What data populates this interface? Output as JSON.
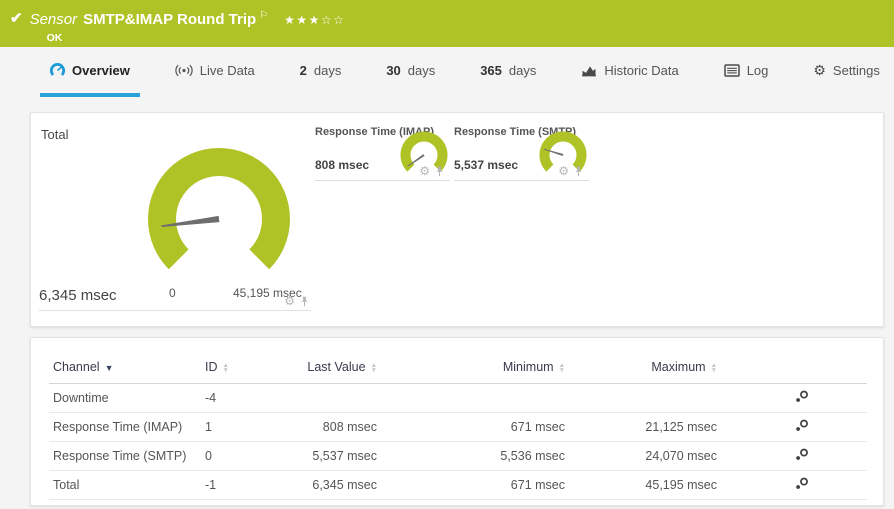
{
  "header": {
    "check_icon": "✔",
    "kind": "Sensor",
    "title": "SMTP&IMAP Round Trip",
    "flag_icon": "⚐",
    "stars": "★★★☆☆",
    "status": "OK"
  },
  "tabs": [
    {
      "label": "Overview",
      "active": true
    },
    {
      "label": "Live Data"
    },
    {
      "num": "2",
      "label": "days"
    },
    {
      "num": "30",
      "label": "days"
    },
    {
      "num": "365",
      "label": "days"
    },
    {
      "label": "Historic Data"
    },
    {
      "label": "Log"
    },
    {
      "label": "Settings"
    }
  ],
  "gauges": {
    "total": {
      "title": "Total",
      "value": 6345,
      "min": 0,
      "max": 45195,
      "value_label": "6,345 msec",
      "min_label": "0",
      "max_label": "45,195 msec"
    },
    "imap": {
      "title": "Response Time (IMAP)",
      "value": 808,
      "max": 21125,
      "value_label": "808 msec"
    },
    "smtp": {
      "title": "Response Time (SMTP)",
      "value": 5537,
      "max": 24070,
      "value_label": "5,537 msec"
    }
  },
  "table": {
    "columns": {
      "channel": "Channel",
      "id": "ID",
      "last": "Last Value",
      "min": "Minimum",
      "max": "Maximum"
    },
    "rows": [
      {
        "channel": "Downtime",
        "id": "-4",
        "last": "",
        "min": "",
        "max": ""
      },
      {
        "channel": "Response Time (IMAP)",
        "id": "1",
        "last": "808 msec",
        "min": "671 msec",
        "max": "21,125 msec"
      },
      {
        "channel": "Response Time (SMTP)",
        "id": "0",
        "last": "5,537 msec",
        "min": "5,536 msec",
        "max": "24,070 msec"
      },
      {
        "channel": "Total",
        "id": "-1",
        "last": "6,345 msec",
        "min": "671 msec",
        "max": "45,195 msec"
      }
    ]
  },
  "icons": {
    "gear": "⚙",
    "sort_active": "▼",
    "sort_up": "▲",
    "sort_down": "▼"
  },
  "colors": {
    "brand_green": "#b0c326",
    "accent_blue": "#29a3d9",
    "needle": "#6e6e6e"
  }
}
